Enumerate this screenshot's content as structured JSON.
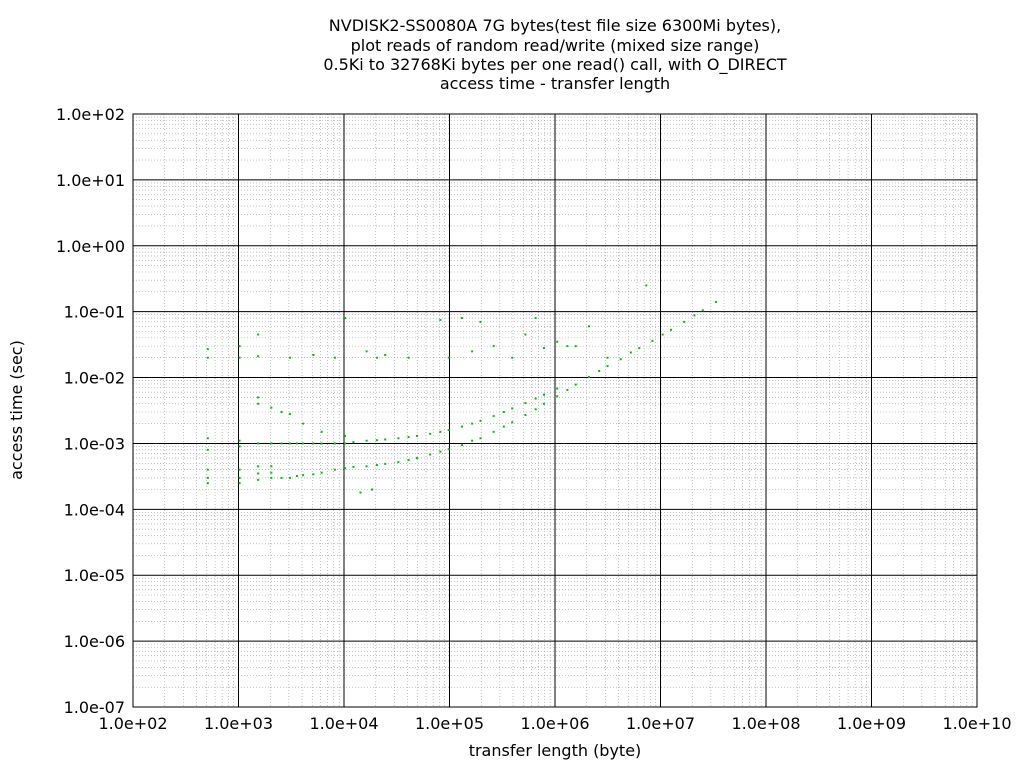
{
  "chart_data": {
    "type": "scatter",
    "title_lines": [
      "NVDISK2-SS0080A 7G bytes(test file size 6300Mi bytes),",
      "plot reads of random read/write (mixed size range)",
      "0.5Ki to 32768Ki bytes per one read() call, with O_DIRECT",
      "access time - transfer length"
    ],
    "xlabel": "transfer length (byte)",
    "ylabel": "access time (sec)",
    "x_scale": "log",
    "y_scale": "log",
    "xlim": [
      100,
      10000000000
    ],
    "ylim": [
      1e-07,
      100
    ],
    "x_tick_labels": [
      "1.0e+02",
      "1.0e+03",
      "1.0e+04",
      "1.0e+05",
      "1.0e+06",
      "1.0e+07",
      "1.0e+08",
      "1.0e+09",
      "1.0e+10"
    ],
    "y_tick_labels": [
      "1.0e-07",
      "1.0e-06",
      "1.0e-05",
      "1.0e-04",
      "1.0e-03",
      "1.0e-02",
      "1.0e-01",
      "1.0e+00",
      "1.0e+01",
      "1.0e+02"
    ],
    "grid": true,
    "minor_grid": true,
    "legend": "none",
    "point_color": "#00c000",
    "series": [
      {
        "x": [
          512,
          512,
          512,
          512,
          512,
          1024,
          1024,
          1024,
          1024,
          1024,
          1536,
          1536,
          1536,
          1536,
          2048,
          2048,
          2048,
          2048,
          2560,
          2560,
          3072,
          3072,
          3584,
          3584,
          4096,
          4096,
          5120,
          5120,
          6144,
          6144,
          8192,
          8192,
          10240,
          10240,
          12288,
          12288,
          16384,
          16384,
          20480,
          20480,
          24576,
          24576,
          32768,
          32768,
          40960,
          40960,
          49152,
          49152,
          65536,
          65536,
          81920,
          81920,
          98304,
          98304,
          131072,
          131072,
          163840,
          163840,
          196608,
          196608,
          262144,
          262144,
          327680,
          327680,
          393216,
          393216,
          524288,
          524288,
          655360,
          655360,
          786432,
          786432,
          1048576,
          1048576,
          1310720,
          1572864,
          2097152,
          2621440,
          3145728,
          4194304,
          5242880,
          6291456,
          8388608,
          10485760,
          12582912,
          16777216,
          20971520,
          25165824,
          33554432,
          512,
          512,
          1024,
          1024,
          1536,
          1536,
          3072,
          5120,
          8192,
          10240,
          16384,
          20480,
          24576,
          40960,
          81920,
          98304,
          131072,
          163840,
          196608,
          262144,
          393216,
          524288,
          655360,
          786432,
          1048576,
          1310720,
          1572864,
          2097152,
          3145728,
          7340032,
          1536,
          1536,
          2048,
          2560,
          3072,
          4096,
          6144,
          10240,
          14336,
          18432
        ],
        "y": [
          0.00025,
          0.0003,
          0.0004,
          0.0008,
          0.0012,
          0.00025,
          0.0003,
          0.0004,
          0.0009,
          0.0011,
          0.00028,
          0.00035,
          0.00045,
          0.001,
          0.0003,
          0.00036,
          0.00045,
          0.001,
          0.0003,
          0.001,
          0.0003,
          0.001,
          0.00032,
          0.001,
          0.00033,
          0.001,
          0.00034,
          0.001,
          0.00036,
          0.001,
          0.0004,
          0.001,
          0.00042,
          0.001,
          0.00044,
          0.00105,
          0.00045,
          0.0011,
          0.00047,
          0.00112,
          0.00049,
          0.00115,
          0.00052,
          0.0012,
          0.00056,
          0.00125,
          0.0006,
          0.0013,
          0.00068,
          0.0014,
          0.00075,
          0.0015,
          0.00082,
          0.0016,
          0.00095,
          0.0018,
          0.0011,
          0.002,
          0.0012,
          0.0022,
          0.0015,
          0.0026,
          0.0018,
          0.003,
          0.0021,
          0.0034,
          0.0027,
          0.0041,
          0.0033,
          0.0048,
          0.004,
          0.0055,
          0.0052,
          0.0068,
          0.0065,
          0.0078,
          0.0102,
          0.0126,
          0.015,
          0.019,
          0.024,
          0.028,
          0.036,
          0.045,
          0.053,
          0.07,
          0.088,
          0.105,
          0.14,
          0.02,
          0.027,
          0.02,
          0.03,
          0.021,
          0.045,
          0.02,
          0.022,
          0.02,
          0.08,
          0.025,
          0.02,
          0.022,
          0.02,
          0.075,
          0.02,
          0.08,
          0.025,
          0.07,
          0.03,
          0.02,
          0.045,
          0.08,
          0.028,
          0.035,
          0.03,
          0.03,
          0.06,
          0.02,
          0.25,
          0.004,
          0.005,
          0.0035,
          0.003,
          0.0028,
          0.002,
          0.0015,
          0.0013,
          0.00018,
          0.0002
        ]
      }
    ]
  }
}
